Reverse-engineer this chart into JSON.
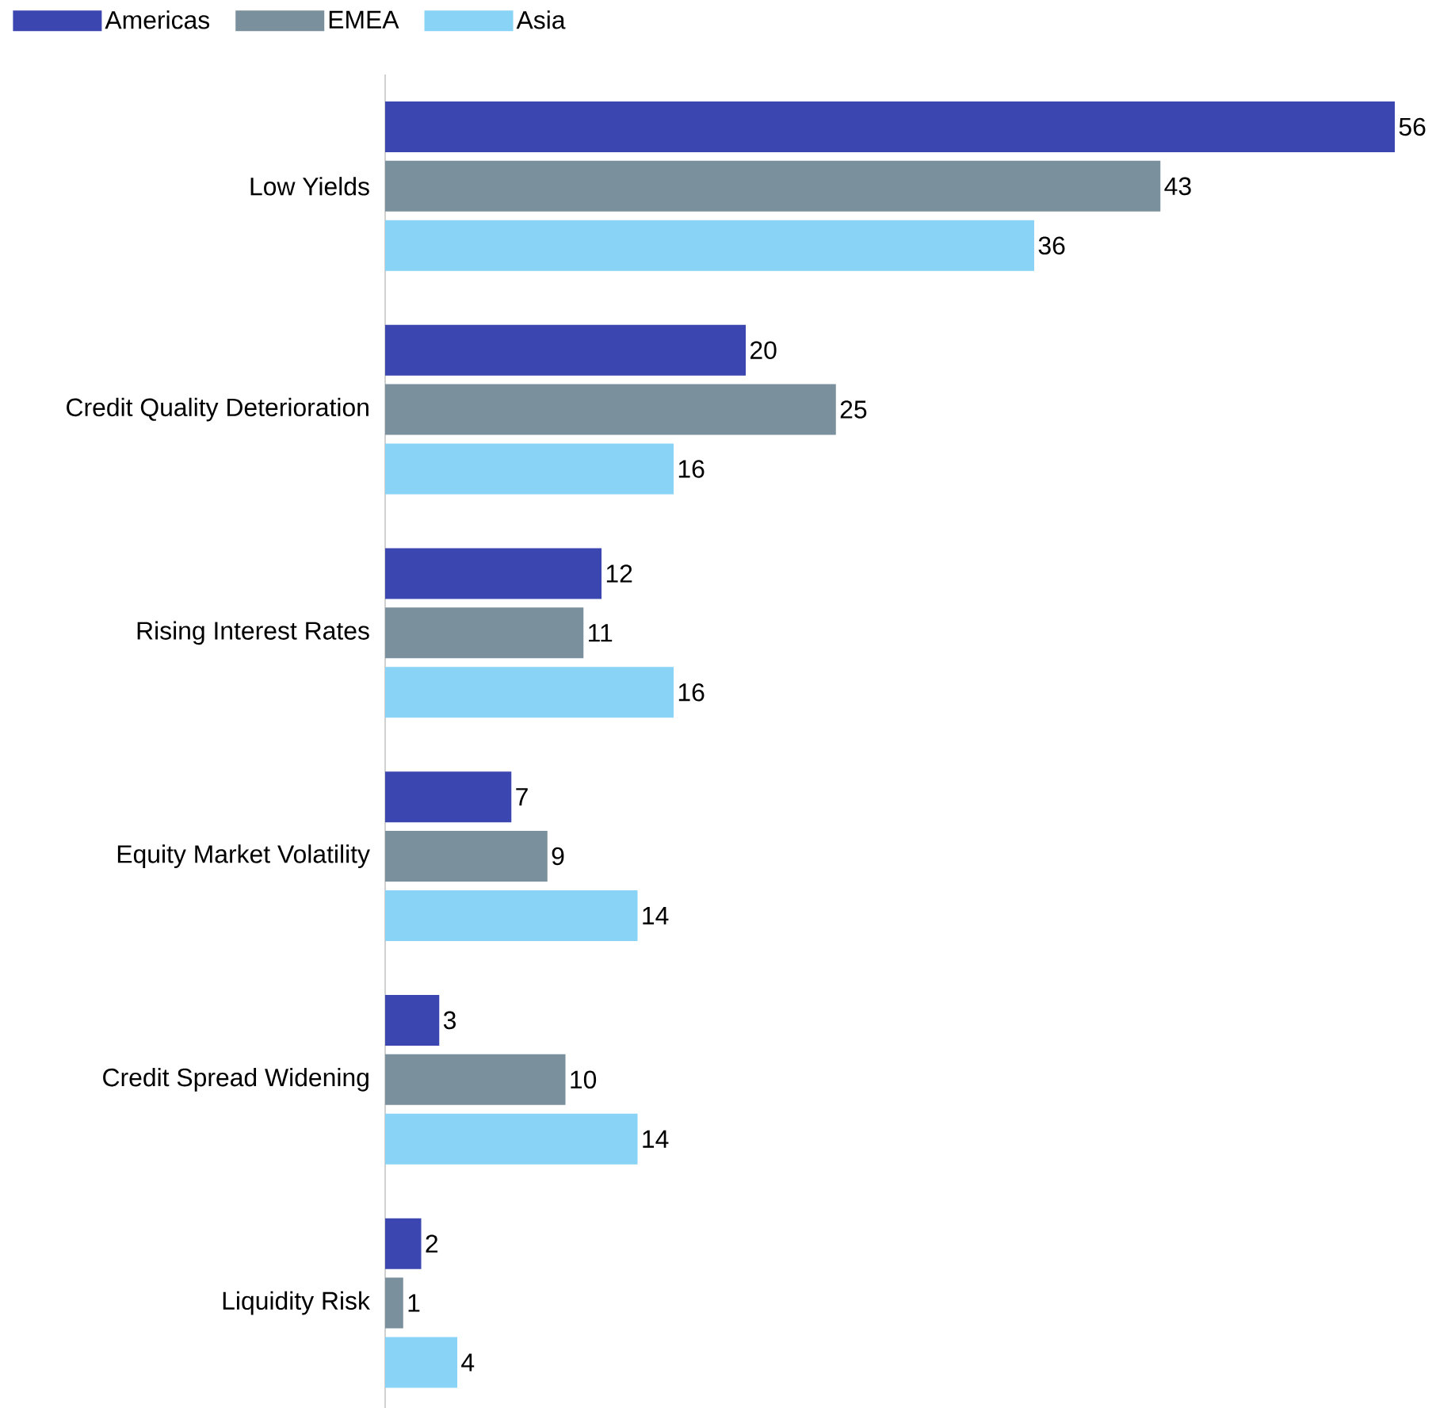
{
  "chart_data": {
    "type": "bar",
    "orientation": "horizontal",
    "data_labels": true,
    "legend": "top left",
    "categories": [
      "Low Yields",
      "Credit Quality Deterioration",
      "Rising Interest Rates",
      "Equity Market Volatility",
      "Credit Spread Widening",
      "Liquidity Risk"
    ],
    "series": [
      {
        "name": "Americas",
        "color": "#3b46b1",
        "values": [
          56,
          20,
          12,
          7,
          3,
          2
        ]
      },
      {
        "name": "EMEA",
        "color": "#7a909d",
        "values": [
          43,
          25,
          11,
          9,
          10,
          1
        ]
      },
      {
        "name": "Asia",
        "color": "#88d3f6",
        "values": [
          36,
          16,
          16,
          14,
          14,
          4
        ]
      }
    ]
  }
}
